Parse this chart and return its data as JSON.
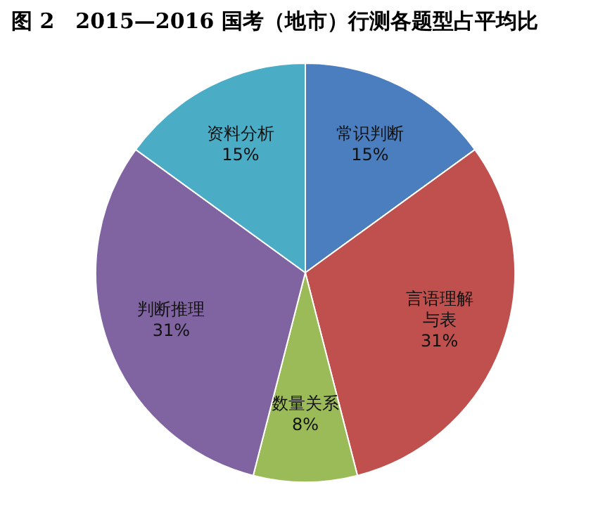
{
  "chart_data": {
    "type": "pie",
    "title": "图 2　2015—2016 国考（地市）行测各题型占平均比",
    "categories": [
      "常识判断",
      "言语理解与表",
      "数量关系",
      "判断推理",
      "资料分析"
    ],
    "values": [
      15,
      31,
      8,
      31,
      15
    ],
    "value_labels": [
      "15%",
      "31%",
      "8%",
      "31%",
      "15%"
    ],
    "colors": [
      "#4a7ebf",
      "#c0504d",
      "#9bbb59",
      "#8064a2",
      "#4bacc6"
    ]
  }
}
